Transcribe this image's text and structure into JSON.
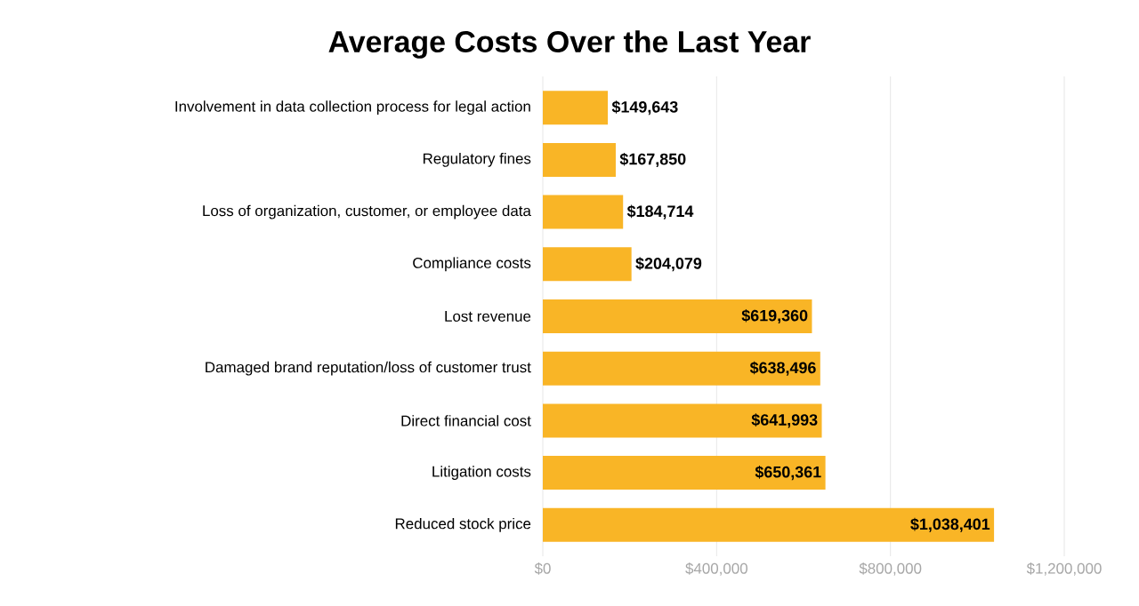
{
  "chart_data": {
    "type": "bar",
    "orientation": "horizontal",
    "title": "Average Costs Over the Last Year",
    "categories": [
      "Involvement in data collection process for legal action",
      "Regulatory fines",
      "Loss of organization, customer, or employee data",
      "Compliance costs",
      "Lost revenue",
      "Damaged brand reputation/loss of customer trust",
      "Direct financial cost",
      "Litigation costs",
      "Reduced stock price"
    ],
    "values": [
      149643,
      167850,
      184714,
      204079,
      619360,
      638496,
      641993,
      650361,
      1038401
    ],
    "value_labels": [
      "$149,643",
      "$167,850",
      "$184,714",
      "$204,079",
      "$619,360",
      "$638,496",
      "$641,993",
      "$650,361",
      "$1,038,401"
    ],
    "color": "#f9b526",
    "xlim": [
      0,
      1200000
    ],
    "xticks": [
      {
        "value": 0,
        "label": "$0"
      },
      {
        "value": 400000,
        "label": "$400,000"
      },
      {
        "value": 800000,
        "label": "$800,000"
      },
      {
        "value": 1200000,
        "label": "$1,200,000"
      }
    ],
    "grid": "x"
  }
}
